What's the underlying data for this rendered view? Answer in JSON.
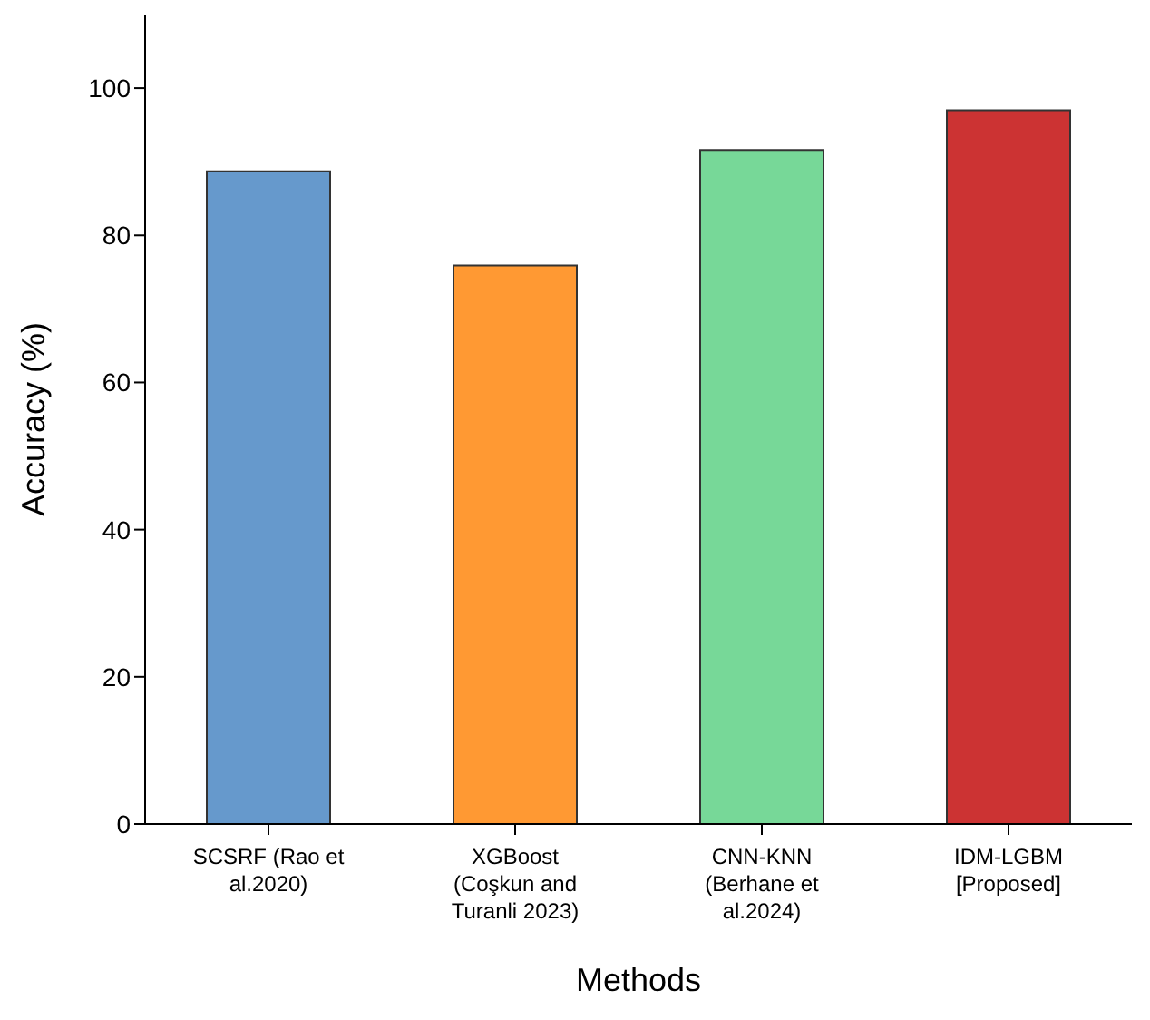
{
  "chart_data": {
    "type": "bar",
    "xlabel": "Methods",
    "ylabel": "Accuracy (%)",
    "categories": [
      "SCSRF (Rao et\nal.2020)",
      "XGBoost\n(Coşkun and\nTuranli 2023)",
      "CNN-KNN\n(Berhane et\nal.2024)",
      "IDM-LGBM\n[Proposed]"
    ],
    "values": [
      88.7,
      75.9,
      91.6,
      97.0
    ],
    "colors": [
      "#6699cc",
      "#ff9933",
      "#77d898",
      "#cc3333"
    ],
    "ylim": [
      0,
      110
    ],
    "yticks": [
      0,
      20,
      40,
      60,
      80,
      100
    ],
    "grid": false,
    "legend": false
  }
}
